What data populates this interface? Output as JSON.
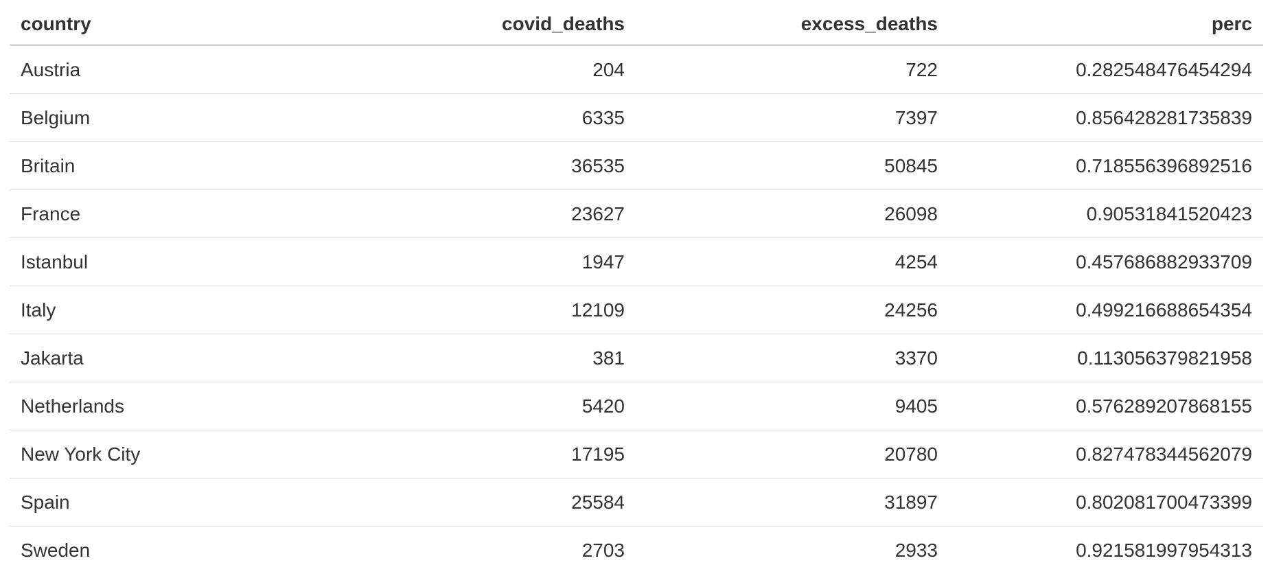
{
  "chart_data": {
    "type": "table",
    "columns": [
      "country",
      "covid_deaths",
      "excess_deaths",
      "perc"
    ],
    "rows": [
      [
        "Austria",
        "204",
        "722",
        "0.282548476454294"
      ],
      [
        "Belgium",
        "6335",
        "7397",
        "0.856428281735839"
      ],
      [
        "Britain",
        "36535",
        "50845",
        "0.718556396892516"
      ],
      [
        "France",
        "23627",
        "26098",
        "0.90531841520423"
      ],
      [
        "Istanbul",
        "1947",
        "4254",
        "0.457686882933709"
      ],
      [
        "Italy",
        "12109",
        "24256",
        "0.499216688654354"
      ],
      [
        "Jakarta",
        "381",
        "3370",
        "0.113056379821958"
      ],
      [
        "Netherlands",
        "5420",
        "9405",
        "0.576289207868155"
      ],
      [
        "New York City",
        "17195",
        "20780",
        "0.827478344562079"
      ],
      [
        "Spain",
        "25584",
        "31897",
        "0.802081700473399"
      ],
      [
        "Sweden",
        "2703",
        "2933",
        "0.921581997954313"
      ]
    ]
  }
}
